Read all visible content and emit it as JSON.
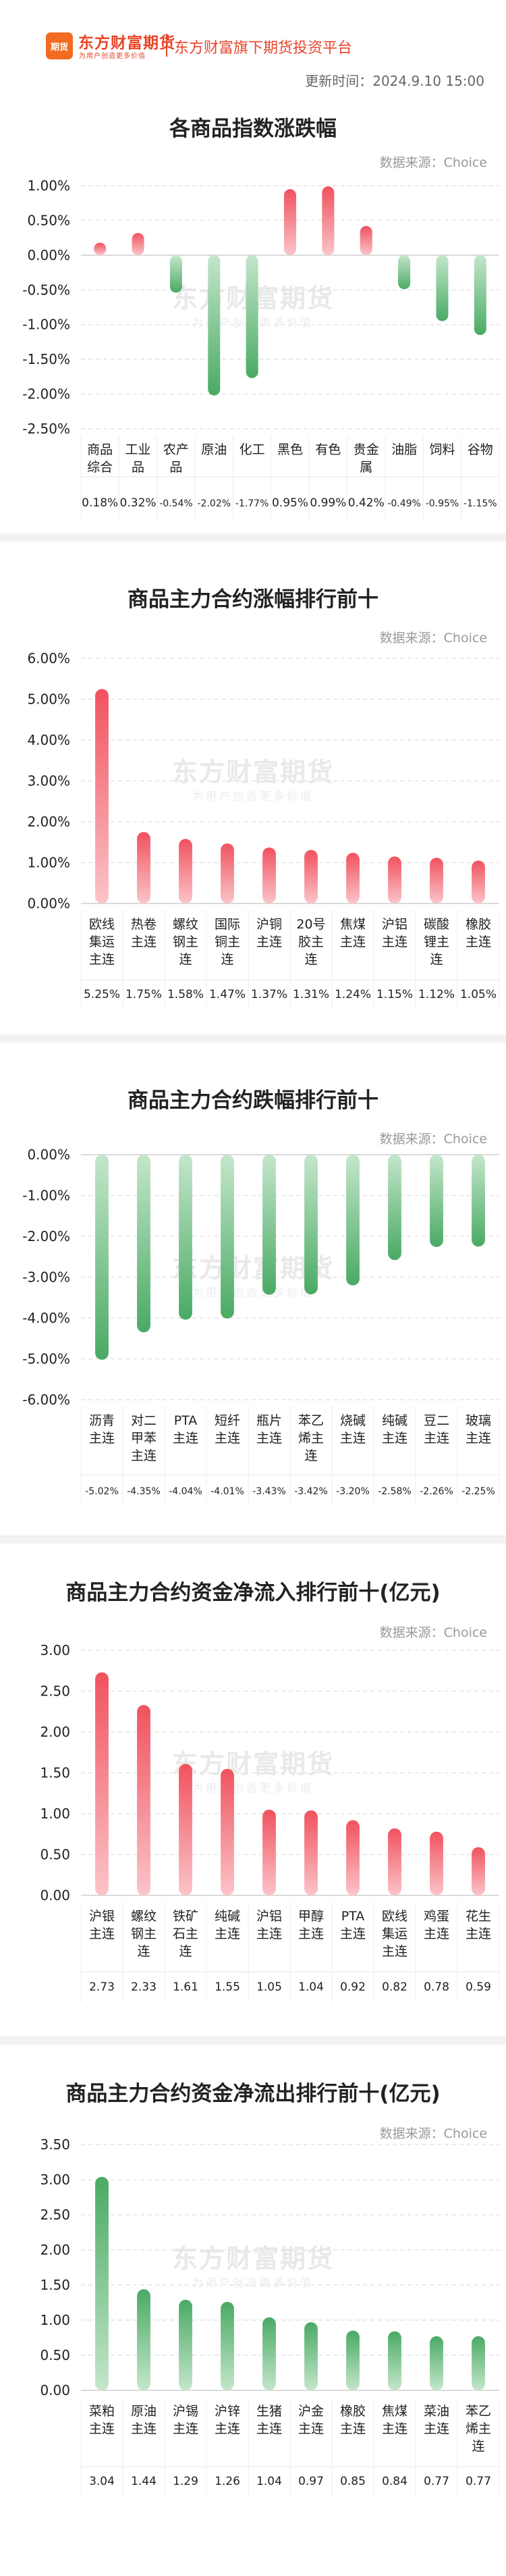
{
  "header": {
    "logo_text": "期货",
    "brand": "东方财富期货",
    "brand_sub": "为用户创造更多价值",
    "tagline": "东方财富旗下期货投资平台",
    "update_label": "更新时间：",
    "update_time": "2024.9.10 15:00"
  },
  "watermark": {
    "main": "东方财富期货",
    "sub": "为用户创造更多价值"
  },
  "colors": {
    "up": "#f0525e",
    "up_light": "#fbc4c9",
    "down": "#4aaa64",
    "down_light": "#c4e6cb"
  },
  "charts": [
    {
      "title": "各商品指数涨跌幅",
      "source": "数据来源：Choice",
      "chart_data": {
        "type": "bar",
        "title": "各商品指数涨跌幅",
        "categories": [
          "商品综合",
          "工业品",
          "农产品",
          "原油",
          "化工",
          "黑色",
          "有色",
          "贵金属",
          "油脂",
          "饲料",
          "谷物"
        ],
        "category_lines": [
          [
            "商品",
            "综合"
          ],
          [
            "工业",
            "品"
          ],
          [
            "农产",
            "品"
          ],
          [
            "原油"
          ],
          [
            "化工"
          ],
          [
            "黑色"
          ],
          [
            "有色"
          ],
          [
            "贵金",
            "属"
          ],
          [
            "油脂"
          ],
          [
            "饲料"
          ],
          [
            "谷物"
          ]
        ],
        "values": [
          0.18,
          0.32,
          -0.54,
          -2.02,
          -1.77,
          0.95,
          0.99,
          0.42,
          -0.49,
          -0.95,
          -1.15
        ],
        "value_labels": [
          "0.18%",
          "0.32%",
          "-0.54%",
          "-2.02%",
          "-1.77%",
          "0.95%",
          "0.99%",
          "0.42%",
          "-0.49%",
          "-0.95%",
          "-1.15%"
        ],
        "yticks": [
          1.0,
          0.5,
          0.0,
          -0.5,
          -1.0,
          -1.5,
          -2.0,
          -2.5
        ],
        "ytick_labels": [
          "1.00%",
          "0.50%",
          "0.00%",
          "-0.50%",
          "-1.00%",
          "-1.50%",
          "-2.00%",
          "-2.50%"
        ],
        "ylim": [
          -2.5,
          1.0
        ],
        "grid": true,
        "label_row": "bottom"
      }
    },
    {
      "title": "商品主力合约涨幅排行前十",
      "source": "数据来源：Choice",
      "chart_data": {
        "type": "bar",
        "title": "商品主力合约涨幅排行前十",
        "categories": [
          "欧线集运主连",
          "热卷主连",
          "螺纹钢主连",
          "国际铜主连",
          "沪铜主连",
          "20号胶主连",
          "焦煤主连",
          "沪铝主连",
          "碳酸锂主连",
          "橡胶主连"
        ],
        "category_lines": [
          [
            "欧线",
            "集运",
            "主连"
          ],
          [
            "热卷",
            "主连"
          ],
          [
            "螺纹",
            "钢主",
            "连"
          ],
          [
            "国际",
            "铜主",
            "连"
          ],
          [
            "沪铜",
            "主连"
          ],
          [
            "20号",
            "胶主",
            "连"
          ],
          [
            "焦煤",
            "主连"
          ],
          [
            "沪铝",
            "主连"
          ],
          [
            "碳酸",
            "锂主",
            "连"
          ],
          [
            "橡胶",
            "主连"
          ]
        ],
        "values": [
          5.25,
          1.75,
          1.58,
          1.47,
          1.37,
          1.31,
          1.24,
          1.15,
          1.12,
          1.05
        ],
        "value_labels": [
          "5.25%",
          "1.75%",
          "1.58%",
          "1.47%",
          "1.37%",
          "1.31%",
          "1.24%",
          "1.15%",
          "1.12%",
          "1.05%"
        ],
        "yticks": [
          6.0,
          5.0,
          4.0,
          3.0,
          2.0,
          1.0,
          0.0
        ],
        "ytick_labels": [
          "6.00%",
          "5.00%",
          "4.00%",
          "3.00%",
          "2.00%",
          "1.00%",
          "0.00%"
        ],
        "ylim": [
          0,
          6.0
        ],
        "grid": true,
        "label_row": "bottom"
      }
    },
    {
      "title": "商品主力合约跌幅排行前十",
      "source": "数据来源：Choice",
      "chart_data": {
        "type": "bar",
        "title": "商品主力合约跌幅排行前十",
        "categories": [
          "沥青主连",
          "对二甲苯主连",
          "PTA主连",
          "短纤主连",
          "瓶片主连",
          "苯乙烯主连",
          "烧碱主连",
          "纯碱主连",
          "豆二主连",
          "玻璃主连"
        ],
        "category_lines": [
          [
            "沥青",
            "主连"
          ],
          [
            "对二",
            "甲苯",
            "主连"
          ],
          [
            "PTA",
            "主连"
          ],
          [
            "短纤",
            "主连"
          ],
          [
            "瓶片",
            "主连"
          ],
          [
            "苯乙",
            "烯主",
            "连"
          ],
          [
            "烧碱",
            "主连"
          ],
          [
            "纯碱",
            "主连"
          ],
          [
            "豆二",
            "主连"
          ],
          [
            "玻璃",
            "主连"
          ]
        ],
        "values": [
          -5.02,
          -4.35,
          -4.04,
          -4.01,
          -3.43,
          -3.42,
          -3.2,
          -2.58,
          -2.26,
          -2.25
        ],
        "value_labels": [
          "-5.02%",
          "-4.35%",
          "-4.04%",
          "-4.01%",
          "-3.43%",
          "-3.42%",
          "-3.20%",
          "-2.58%",
          "-2.26%",
          "-2.25%"
        ],
        "yticks": [
          0.0,
          -1.0,
          -2.0,
          -3.0,
          -4.0,
          -5.0,
          -6.0
        ],
        "ytick_labels": [
          "0.00%",
          "-1.00%",
          "-2.00%",
          "-3.00%",
          "-4.00%",
          "-5.00%",
          "-6.00%"
        ],
        "ylim": [
          -6.0,
          0
        ],
        "grid": true,
        "label_row": "bottom"
      }
    },
    {
      "title": "商品主力合约资金净流入排行前十(亿元)",
      "source": "数据来源：Choice",
      "chart_data": {
        "type": "bar",
        "title": "商品主力合约资金净流入排行前十(亿元)",
        "categories": [
          "沪银主连",
          "螺纹钢主连",
          "铁矿石主连",
          "纯碱主连",
          "沪铝主连",
          "甲醇主连",
          "PTA主连",
          "欧线集运主连",
          "鸡蛋主连",
          "花生主连"
        ],
        "category_lines": [
          [
            "沪银",
            "主连"
          ],
          [
            "螺纹",
            "钢主",
            "连"
          ],
          [
            "铁矿",
            "石主",
            "连"
          ],
          [
            "纯碱",
            "主连"
          ],
          [
            "沪铝",
            "主连"
          ],
          [
            "甲醇",
            "主连"
          ],
          [
            "PTA",
            "主连"
          ],
          [
            "欧线",
            "集运",
            "主连"
          ],
          [
            "鸡蛋",
            "主连"
          ],
          [
            "花生",
            "主连"
          ]
        ],
        "values": [
          2.73,
          2.33,
          1.61,
          1.55,
          1.05,
          1.04,
          0.92,
          0.82,
          0.78,
          0.59
        ],
        "value_labels": [
          "2.73",
          "2.33",
          "1.61",
          "1.55",
          "1.05",
          "1.04",
          "0.92",
          "0.82",
          "0.78",
          "0.59"
        ],
        "yticks": [
          3.0,
          2.5,
          2.0,
          1.5,
          1.0,
          0.5,
          0.0
        ],
        "ytick_labels": [
          "3.00",
          "2.50",
          "2.00",
          "1.50",
          "1.00",
          "0.50",
          "0.00"
        ],
        "ylim": [
          0,
          3.0
        ],
        "grid": true,
        "label_row": "bottom"
      }
    },
    {
      "title": "商品主力合约资金净流出排行前十(亿元)",
      "source": "数据来源：Choice",
      "chart_data": {
        "type": "bar",
        "title": "商品主力合约资金净流出排行前十(亿元)",
        "categories": [
          "菜粕主连",
          "原油主连",
          "沪锡主连",
          "沪锌主连",
          "生猪主连",
          "沪金主连",
          "橡胶主连",
          "焦煤主连",
          "菜油主连",
          "苯乙烯主连"
        ],
        "category_lines": [
          [
            "菜粕",
            "主连"
          ],
          [
            "原油",
            "主连"
          ],
          [
            "沪锡",
            "主连"
          ],
          [
            "沪锌",
            "主连"
          ],
          [
            "生猪",
            "主连"
          ],
          [
            "沪金",
            "主连"
          ],
          [
            "橡胶",
            "主连"
          ],
          [
            "焦煤",
            "主连"
          ],
          [
            "菜油",
            "主连"
          ],
          [
            "苯乙",
            "烯主",
            "连"
          ]
        ],
        "values": [
          3.04,
          1.44,
          1.29,
          1.26,
          1.04,
          0.97,
          0.85,
          0.84,
          0.77,
          0.77
        ],
        "value_labels": [
          "3.04",
          "1.44",
          "1.29",
          "1.26",
          "1.04",
          "0.97",
          "0.85",
          "0.84",
          "0.77",
          "0.77"
        ],
        "yticks": [
          3.5,
          3.0,
          2.5,
          2.0,
          1.5,
          1.0,
          0.5,
          0.0
        ],
        "ytick_labels": [
          "3.50",
          "3.00",
          "2.50",
          "2.00",
          "1.50",
          "1.00",
          "0.50",
          "0.00"
        ],
        "ylim": [
          0,
          3.5
        ],
        "grid": true,
        "label_row": "bottom",
        "bar_color": "down"
      }
    }
  ]
}
